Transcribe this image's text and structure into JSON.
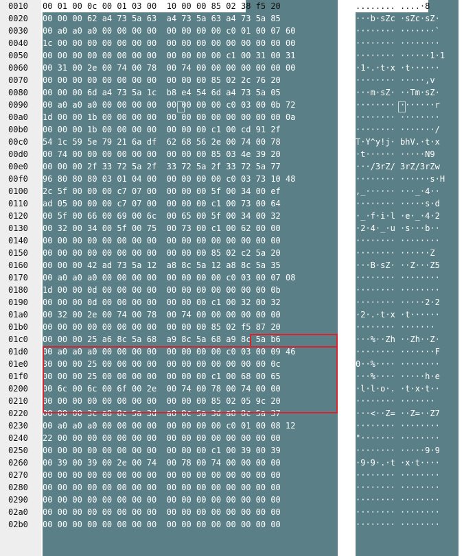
{
  "rows": [
    {
      "offset": "0010",
      "hex": "00 01 00 0c 00 01 03 00  10 00 00 85 02 38 f5 20",
      "ascii": "........ ....·8 "
    },
    {
      "offset": "0020",
      "hex": "00 00 00 62 a4 73 5a 63  a4 73 5a 63 a4 73 5a 85",
      "ascii": "···b·sZc ·sZc·sZ·"
    },
    {
      "offset": "0030",
      "hex": "00 a0 a0 a0 00 00 00 00  00 00 00 00 c0 01 00 07 60",
      "ascii": "········ ·······`"
    },
    {
      "offset": "0040",
      "hex": "1c 00 00 00 00 00 00 00  00 00 00 00 00 00 00 00 00",
      "ascii": "········ ········"
    },
    {
      "offset": "0050",
      "hex": "00 00 00 00 00 00 00 00  00 00 00 00 c1 00 31 00 31",
      "ascii": "········ ······1·1"
    },
    {
      "offset": "0060",
      "hex": "00 31 00 2e 00 74 00 78  00 74 00 00 00 00 00 00 00",
      "ascii": "·1·.·t·x ·t······"
    },
    {
      "offset": "0070",
      "hex": "00 00 00 00 00 00 00 00  00 00 00 85 02 2c 76 20",
      "ascii": "········ ·····,v "
    },
    {
      "offset": "0080",
      "hex": "00 00 00 6d a4 73 5a 1c  b8 e4 54 6d a4 73 5a 05",
      "ascii": "···m·sZ· ··Tm·sZ·"
    },
    {
      "offset": "0090",
      "hex": "00 a0 a0 a0 00 00 00 00  00 00 00 00 c0 03 00 0b 72",
      "ascii": "········ ·······r"
    },
    {
      "offset": "00a0",
      "hex": "1d 00 00 1b 00 00 00 00  00 00 00 00 00 00 00 00 0a",
      "ascii": "········ ········"
    },
    {
      "offset": "00b0",
      "hex": "00 00 00 1b 00 00 00 00  00 00 00 c1 00 cd 91 2f",
      "ascii": "········ ·······/"
    },
    {
      "offset": "00c0",
      "hex": "54 1c 59 5e 79 21 6a df  62 68 56 2e 00 74 00 78",
      "ascii": "T·Y^y!j· bhV.·t·x"
    },
    {
      "offset": "00d0",
      "hex": "00 74 00 00 00 00 00 00  00 00 00 85 03 4e 39 20",
      "ascii": "·t······ ·····N9 "
    },
    {
      "offset": "00e0",
      "hex": "00 00 00 2f 33 72 5a 2f  33 72 5a 2f 33 72 5a 77",
      "ascii": "···/3rZ/ 3rZ/3rZw"
    },
    {
      "offset": "00f0",
      "hex": "96 80 80 80 03 01 04 00  00 00 00 00 c0 03 73 10 48",
      "ascii": "········ ······s·H"
    },
    {
      "offset": "0100",
      "hex": "2c 5f 00 00 00 c7 07 00  00 00 00 5f 00 34 00 ef",
      "ascii": ",_······ ···_·4··"
    },
    {
      "offset": "0110",
      "hex": "ad 05 00 00 00 c7 07 00  00 00 00 c1 00 73 00 64",
      "ascii": "········ ·····s·d"
    },
    {
      "offset": "0120",
      "hex": "00 5f 00 66 00 69 00 6c  00 65 00 5f 00 34 00 32",
      "ascii": "·_·f·i·l ·e·_·4·2"
    },
    {
      "offset": "0130",
      "hex": "00 32 00 34 00 5f 00 75  00 73 00 c1 00 62 00 00",
      "ascii": "·2·4·_·u ·s···b··"
    },
    {
      "offset": "0140",
      "hex": "00 00 00 00 00 00 00 00  00 00 00 00 00 00 00 00",
      "ascii": "········ ········"
    },
    {
      "offset": "0150",
      "hex": "00 00 00 00 00 00 00 00  00 00 00 85 02 c2 5a 20",
      "ascii": "········ ······Z "
    },
    {
      "offset": "0160",
      "hex": "00 00 00 42 ad 73 5a 12  a8 8c 5a 12 a8 8c 5a 35",
      "ascii": "···B·sZ· ··Z···Z5"
    },
    {
      "offset": "0170",
      "hex": "00 a0 a0 a0 00 00 00 00  00 00 00 00 c0 03 00 07 08",
      "ascii": "········ ········"
    },
    {
      "offset": "0180",
      "hex": "1d 00 00 0d 00 00 00 00  00 00 00 00 00 00 00 0b",
      "ascii": "········ ········"
    },
    {
      "offset": "0190",
      "hex": "00 00 00 0d 00 00 00 00  00 00 00 c1 00 32 00 32",
      "ascii": "········ ·····2·2"
    },
    {
      "offset": "01a0",
      "hex": "00 32 00 2e 00 74 00 78  00 74 00 00 00 00 00 00",
      "ascii": "·2·.·t·x ·t······"
    },
    {
      "offset": "01b0",
      "hex": "00 00 00 00 00 00 00 00  00 00 00 85 02 f5 87 20",
      "ascii": "········ ······· "
    },
    {
      "offset": "01c0",
      "hex": "00 00 00 25 a6 8c 5a 68  a9 8c 5a 68 a9 8c 5a b6",
      "ascii": "···%··Zh ··Zh··Z·"
    },
    {
      "offset": "01d0",
      "hex": "00 a0 a0 a0 00 00 00 00  00 00 00 00 c0 03 00 09 46",
      "ascii": "········ ·······F"
    },
    {
      "offset": "01e0",
      "hex": "30 00 00 25 00 00 00 00  00 00 00 00 00 00 00 0c",
      "ascii": "0··%···· ········"
    },
    {
      "offset": "01f0",
      "hex": "00 00 00 25 00 00 00 00  00 00 00 c1 00 68 00 65",
      "ascii": "···%···· ·····h·e"
    },
    {
      "offset": "0200",
      "hex": "00 6c 00 6c 00 6f 00 2e  00 74 00 78 00 74 00 00",
      "ascii": "·l·l·o·. ·t·x·t··"
    },
    {
      "offset": "0210",
      "hex": "00 00 00 00 00 00 00 00  00 00 00 85 02 05 9c 20",
      "ascii": "········ ······· "
    },
    {
      "offset": "0220",
      "hex": "00 00 00 3c a8 8c 5a 3d  a8 8c 5a 3d a8 8c 5a 37",
      "ascii": "···<··Z= ··Z=··Z7"
    },
    {
      "offset": "0230",
      "hex": "00 a0 a0 a0 00 00 00 00  00 00 00 00 c0 01 00 08 12",
      "ascii": "········ ········"
    },
    {
      "offset": "0240",
      "hex": "22 00 00 00 00 00 00 00  00 00 00 00 00 00 00 00",
      "ascii": "\"······· ········"
    },
    {
      "offset": "0250",
      "hex": "00 00 00 00 00 00 00 00  00 00 00 c1 00 39 00 39",
      "ascii": "········ ·····9·9"
    },
    {
      "offset": "0260",
      "hex": "00 39 00 39 00 2e 00 74  00 78 00 74 00 00 00 00",
      "ascii": "·9·9·.·t ·x·t····"
    },
    {
      "offset": "0270",
      "hex": "00 00 00 00 00 00 00 00  00 00 00 00 00 00 00 00",
      "ascii": "········ ········"
    },
    {
      "offset": "0280",
      "hex": "00 00 00 00 00 00 00 00  00 00 00 00 00 00 00 00",
      "ascii": "········ ········"
    },
    {
      "offset": "0290",
      "hex": "00 00 00 00 00 00 00 00  00 00 00 00 00 00 00 00",
      "ascii": "········ ········"
    },
    {
      "offset": "02a0",
      "hex": "00 00 00 00 00 00 00 00  00 00 00 00 00 00 00 00",
      "ascii": "········ ········"
    },
    {
      "offset": "02b0",
      "hex": "00 00 00 00 00 00 00 00  00 00 00 00 00 00 00 00",
      "ascii": "········ ········"
    }
  ],
  "colors": {
    "hex_background": "#5a7f86",
    "offset_background": "#eeeeee",
    "highlight_border": "#d9232e",
    "selection": "#ffffff"
  }
}
